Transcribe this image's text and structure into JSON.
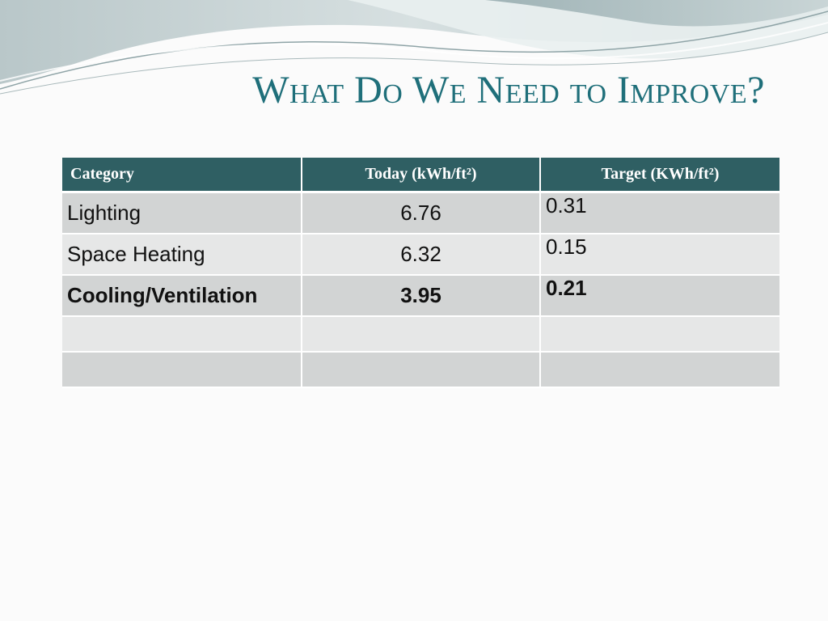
{
  "slide": {
    "title": "What Do We Need to Improve?"
  },
  "table": {
    "headers": [
      "Category",
      "Today (kWh/ft²)",
      "Target (KWh/ft²)"
    ],
    "rows": [
      {
        "category": "Lighting",
        "today": "6.76",
        "target": "0.31",
        "bold": false
      },
      {
        "category": "Space Heating",
        "today": "6.32",
        "target": "0.15",
        "bold": false
      },
      {
        "category": "Cooling/Ventilation",
        "today": "3.95",
        "target": "0.21",
        "bold": true
      },
      {
        "category": "",
        "today": "",
        "target": "",
        "bold": false
      },
      {
        "category": "",
        "today": "",
        "target": "",
        "bold": false
      }
    ]
  },
  "colors": {
    "header_bg": "#2f5f63",
    "title_text": "#1f6f7a",
    "row_odd": "#d2d4d4",
    "row_even": "#e6e7e7"
  }
}
